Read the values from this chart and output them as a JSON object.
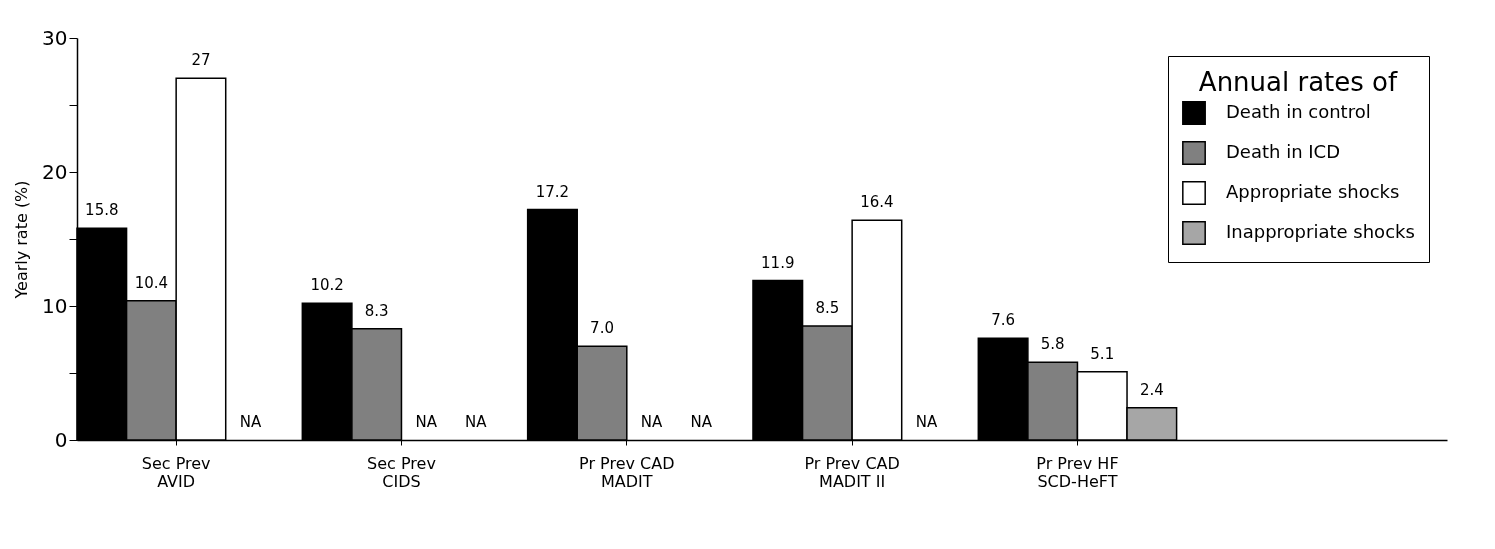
{
  "chart_data": {
    "type": "bar",
    "ylabel": "Yearly rate (%)",
    "legend_title": "Annual rates of",
    "legend": "top right",
    "grid": false,
    "categories": [
      "Sec Prev\nAVID",
      "Sec Prev\nCIDS",
      "Pr Prev CAD\nMADIT",
      "Pr Prev CAD\nMADIT II",
      "Pr Prev HF\nSCD-HeFT"
    ],
    "ylim": [
      0,
      30
    ],
    "yticks": [
      0,
      {
        "value": 5,
        "label": null
      },
      10,
      {
        "value": 15,
        "label": null
      },
      20,
      {
        "value": 25,
        "label": null
      },
      30
    ],
    "series": [
      {
        "name": "Death in control",
        "color": "#000000",
        "values": [
          15.8,
          10.2,
          17.2,
          11.9,
          7.6
        ],
        "value_labels": [
          "15.8",
          "10.2",
          "17.2",
          "11.9",
          "7.6"
        ]
      },
      {
        "name": "Death in ICD",
        "color": "#808080",
        "values": [
          10.4,
          8.3,
          7.0,
          8.5,
          5.8
        ],
        "value_labels": [
          "10.4",
          "8.3",
          "7.0",
          "8.5",
          "5.8"
        ]
      },
      {
        "name": "Appropriate shocks",
        "color": "#ffffff",
        "values": [
          27,
          null,
          null,
          16.4,
          5.1
        ],
        "value_labels": [
          "27",
          "NA",
          "NA",
          "16.4",
          "5.1"
        ]
      },
      {
        "name": "Inappropriate shocks",
        "color": "#a6a6a6",
        "values": [
          null,
          null,
          null,
          null,
          2.4
        ],
        "value_labels": [
          "NA",
          "NA",
          "NA",
          "NA",
          "2.4"
        ]
      }
    ]
  }
}
